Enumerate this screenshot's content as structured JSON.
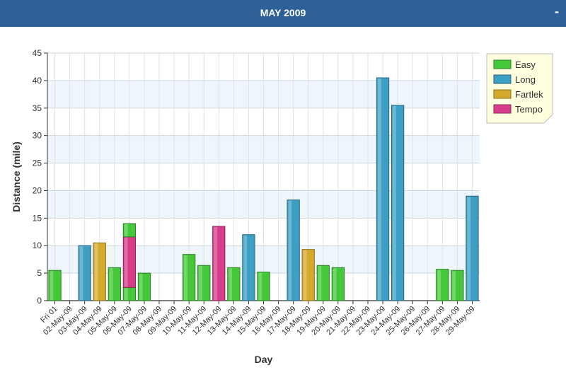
{
  "header": {
    "title": "MAY 2009",
    "collapse_label": "-"
  },
  "colors": {
    "header_bg": "#2e6199",
    "Easy": "#44c83a",
    "Long": "#3d9fc3",
    "Fartlek": "#d4aa2c",
    "Tempo": "#d73d8a"
  },
  "chart_data": {
    "type": "bar",
    "stacked": true,
    "title": "",
    "xlabel": "Day",
    "ylabel": "Distance (mile)",
    "ylim": [
      0,
      45
    ],
    "yticks": [
      0,
      5,
      10,
      15,
      20,
      25,
      30,
      35,
      40,
      45
    ],
    "grid": true,
    "legend_position": "top-right",
    "categories": [
      "Fri 01",
      "02-May-09",
      "03-May-09",
      "04-May-09",
      "05-May-09",
      "06-May-09",
      "07-May-09",
      "08-May-09",
      "09-May-09",
      "10-May-09",
      "11-May-09",
      "12-May-09",
      "13-May-09",
      "14-May-09",
      "15-May-09",
      "16-May-09",
      "17-May-09",
      "18-May-09",
      "19-May-09",
      "20-May-09",
      "21-May-09",
      "22-May-09",
      "23-May-09",
      "24-May-09",
      "25-May-09",
      "26-May-09",
      "27-May-09",
      "28-May-09",
      "29-May-09"
    ],
    "series": [
      {
        "name": "Easy",
        "values": [
          5.5,
          0,
          0,
          0,
          6,
          2.4,
          5,
          0,
          0,
          8.4,
          6.4,
          0,
          6,
          0,
          5.2,
          0,
          0,
          0,
          6.4,
          6,
          0,
          0,
          0,
          0,
          0,
          0,
          5.7,
          5.5,
          0
        ]
      },
      {
        "name": "Long",
        "values": [
          0,
          0,
          10,
          0,
          0,
          0,
          0,
          0,
          0,
          0,
          0,
          0,
          0,
          12,
          0,
          0,
          18.3,
          0,
          0,
          0,
          0,
          0,
          40.5,
          35.5,
          0,
          0,
          0,
          0,
          19
        ]
      },
      {
        "name": "Fartlek",
        "values": [
          0,
          0,
          0,
          10.5,
          0,
          0,
          0,
          0,
          0,
          0,
          0,
          0,
          0,
          0,
          0,
          0,
          0,
          9.3,
          0,
          0,
          0,
          0,
          0,
          0,
          0,
          0,
          0,
          0,
          0
        ]
      },
      {
        "name": "Tempo",
        "values": [
          0,
          0,
          0,
          0,
          0,
          9.2,
          0,
          0,
          0,
          0,
          0,
          13.5,
          0,
          0,
          0,
          0,
          0,
          0,
          0,
          0,
          0,
          0,
          0,
          0,
          0,
          0,
          0,
          0,
          0
        ]
      },
      {
        "name": "Easy",
        "values": [
          0,
          0,
          0,
          0,
          0,
          2.4,
          0,
          0,
          0,
          0,
          0,
          0,
          0,
          0,
          0,
          0,
          0,
          0,
          0,
          0,
          0,
          0,
          0,
          0,
          0,
          0,
          0,
          0,
          0
        ]
      }
    ]
  }
}
